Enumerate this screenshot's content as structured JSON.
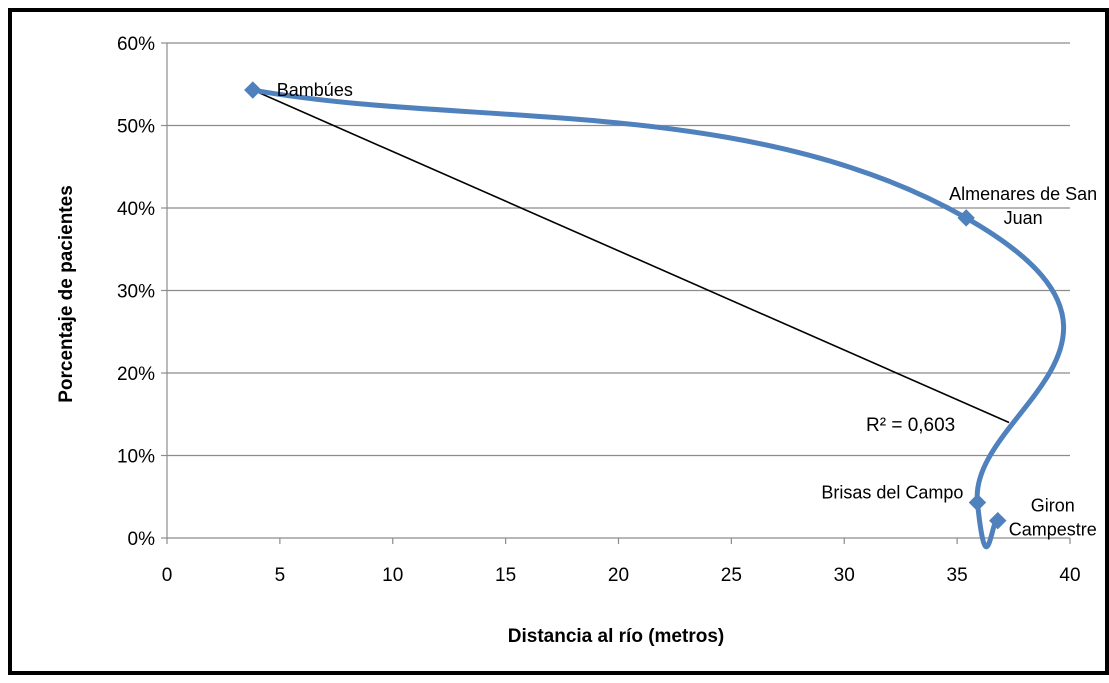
{
  "chart_data": {
    "type": "scatter",
    "title": "",
    "xlabel": "Distancia al río (metros)",
    "ylabel": "Porcentaje de pacientes",
    "xlim": [
      0,
      40
    ],
    "ylim": [
      0,
      0.6
    ],
    "x_ticks": [
      0,
      5,
      10,
      15,
      20,
      25,
      30,
      35,
      40
    ],
    "x_tick_labels": [
      "0",
      "5",
      "10",
      "15",
      "20",
      "25",
      "30",
      "35",
      "40"
    ],
    "y_ticks": [
      0,
      0.1,
      0.2,
      0.3,
      0.4,
      0.5,
      0.6
    ],
    "y_tick_labels": [
      "0%",
      "10%",
      "20%",
      "30%",
      "40%",
      "50%",
      "60%"
    ],
    "grid": "horizontal",
    "legend": "none",
    "series": [
      {
        "color": "#4F81BD",
        "smooth": true,
        "points": [
          {
            "x": 3.8,
            "y": 0.543,
            "label": "Bambúes"
          },
          {
            "x": 35.4,
            "y": 0.388,
            "label": "Almenares de San Juan"
          },
          {
            "x": 35.9,
            "y": 0.043,
            "label": "Brisas del Campo"
          },
          {
            "x": 36.8,
            "y": 0.021,
            "label": "Giron Campestre"
          }
        ]
      }
    ],
    "trendline": {
      "type": "linear",
      "color": "#000000",
      "from": {
        "x": 3.8,
        "y": 0.543
      },
      "to": {
        "x": 37.3,
        "y": 0.14
      },
      "annotation": "R² = 0,603"
    }
  }
}
